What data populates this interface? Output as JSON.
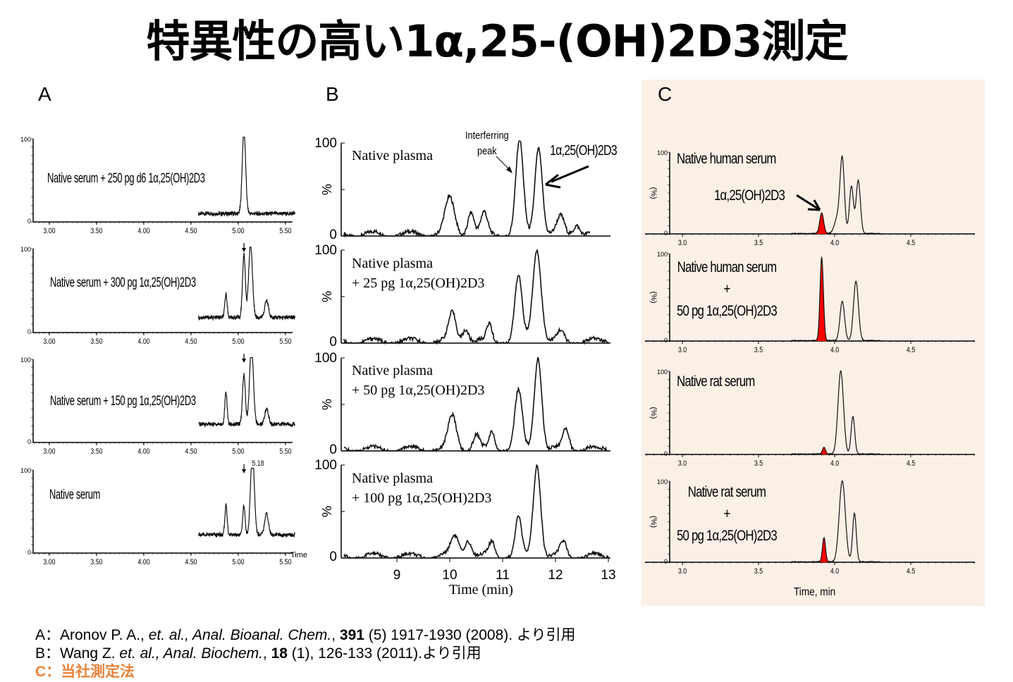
{
  "title": "特異性の高い1α,25-(OH)2D3測定",
  "panels": {
    "A": {
      "label": "A"
    },
    "B": {
      "label": "B",
      "interfering": "Interferring",
      "interfering2": "peak",
      "analyte": "1α,25(OH)2D3",
      "xlabel": "Time (min)",
      "ylabel": "%"
    },
    "C": {
      "label": "C",
      "analyte": "1α,25(OH)2D3",
      "xlabel": "Time, min",
      "ylabel": "(%)"
    }
  },
  "traces": {
    "A": [
      "Native serum + 250 pg d6 1α,25(OH)2D3",
      "Native serum + 300 pg 1α,25(OH)2D3",
      "Native serum + 150 pg 1α,25(OH)2D3",
      "Native serum"
    ],
    "A_peak_label": "5.18",
    "A_time_label": "Time",
    "B": [
      [
        "Native plasma",
        ""
      ],
      [
        "Native plasma",
        "+ 25 pg 1α,25(OH)2D3"
      ],
      [
        "Native plasma",
        "+ 50 pg 1α,25(OH)2D3"
      ],
      [
        "Native plasma",
        "+ 100 pg 1α,25(OH)2D3"
      ]
    ],
    "C": [
      [
        "Native human serum"
      ],
      [
        "Native human serum",
        "+",
        "50 pg 1α,25(OH)2D3"
      ],
      [
        "Native rat serum"
      ],
      [
        "Native rat serum",
        "+",
        "50 pg 1α,25(OH)2D3"
      ]
    ]
  },
  "chart_data": [
    {
      "type": "line",
      "panel": "A",
      "xlim": [
        2.85,
        5.6
      ],
      "ylim": [
        0,
        100
      ],
      "xticks": [
        "3.00",
        "3.50",
        "4.00",
        "4.50",
        "5.00",
        "5.50"
      ],
      "yticks": [
        "0",
        "100"
      ],
      "series": [
        {
          "name": "Native serum + 250 pg d6",
          "start": 4.58,
          "baseline": 10,
          "peaks": [
            [
              5.06,
              100,
              0.018
            ]
          ]
        },
        {
          "name": "Native serum + 300 pg",
          "start": 4.58,
          "baseline": 18,
          "peaks": [
            [
              4.87,
              28,
              0.012
            ],
            [
              5.06,
              75,
              0.015
            ],
            [
              5.13,
              88,
              0.02
            ],
            [
              5.3,
              20,
              0.02
            ]
          ]
        },
        {
          "name": "Native serum + 150 pg",
          "start": 4.58,
          "baseline": 22,
          "peaks": [
            [
              4.87,
              38,
              0.012
            ],
            [
              5.06,
              60,
              0.015
            ],
            [
              5.14,
              95,
              0.02
            ],
            [
              5.3,
              18,
              0.02
            ]
          ]
        },
        {
          "name": "Native serum",
          "start": 4.58,
          "baseline": 22,
          "peaks": [
            [
              4.87,
              35,
              0.012
            ],
            [
              5.06,
              35,
              0.012
            ],
            [
              5.15,
              100,
              0.02
            ],
            [
              5.3,
              25,
              0.02
            ]
          ]
        }
      ]
    },
    {
      "type": "line",
      "panel": "B",
      "xlim": [
        8,
        13
      ],
      "ylim": [
        0,
        100
      ],
      "xticks": [
        "9",
        "10",
        "11",
        "12",
        "13"
      ],
      "yticks": [
        "0",
        "%",
        "100"
      ],
      "series": [
        {
          "name": "Native plasma",
          "start": 8,
          "end": 12.65,
          "baseline": 2,
          "peaks": [
            [
              10,
              38,
              0.09
            ],
            [
              10.4,
              25,
              0.06
            ],
            [
              10.65,
              22,
              0.06
            ],
            [
              11.32,
              100,
              0.07
            ],
            [
              11.68,
              95,
              0.07
            ],
            [
              12.1,
              18,
              0.07
            ],
            [
              12.4,
              12,
              0.06
            ]
          ]
        },
        {
          "name": "+25 pg",
          "start": 8,
          "end": 13,
          "baseline": 2,
          "peaks": [
            [
              10.05,
              30,
              0.07
            ],
            [
              10.3,
              15,
              0.06
            ],
            [
              10.75,
              18,
              0.05
            ],
            [
              11.3,
              68,
              0.07
            ],
            [
              11.65,
              100,
              0.08
            ],
            [
              12.1,
              10,
              0.06
            ]
          ]
        },
        {
          "name": "+50 pg",
          "start": 8,
          "end": 13,
          "baseline": 2,
          "peaks": [
            [
              10.05,
              35,
              0.08
            ],
            [
              10.5,
              15,
              0.06
            ],
            [
              10.8,
              18,
              0.05
            ],
            [
              11.3,
              62,
              0.07
            ],
            [
              11.67,
              100,
              0.07
            ],
            [
              12.2,
              22,
              0.06
            ]
          ]
        },
        {
          "name": "+100 pg",
          "start": 8,
          "end": 13,
          "baseline": 2,
          "peaks": [
            [
              10.1,
              22,
              0.08
            ],
            [
              10.35,
              18,
              0.06
            ],
            [
              10.8,
              15,
              0.06
            ],
            [
              11.3,
              40,
              0.06
            ],
            [
              11.65,
              100,
              0.07
            ],
            [
              12.15,
              15,
              0.06
            ]
          ]
        }
      ]
    },
    {
      "type": "line",
      "panel": "C",
      "xlim": [
        2.9,
        4.9
      ],
      "ylim": [
        0,
        100
      ],
      "xticks": [
        "3.0",
        "3.5",
        "4.0",
        "4.5"
      ],
      "yticks": [
        "0",
        "100"
      ],
      "series": [
        {
          "name": "Native human serum",
          "start": 3.72,
          "end": 4.3,
          "analyte_peak": [
            3.915,
            25,
            0.013
          ],
          "peaks": [
            [
              4.02,
              20,
              0.02
            ],
            [
              4.05,
              88,
              0.014
            ],
            [
              4.11,
              58,
              0.013
            ],
            [
              4.155,
              65,
              0.014
            ]
          ]
        },
        {
          "name": "Native human serum + 50 pg",
          "start": 3.72,
          "end": 4.3,
          "analyte_peak": [
            3.915,
            95,
            0.011
          ],
          "peaks": [
            [
              4.05,
              45,
              0.015
            ],
            [
              4.14,
              68,
              0.016
            ]
          ]
        },
        {
          "name": "Native rat serum",
          "start": 3.72,
          "end": 4.3,
          "analyte_peak": [
            3.93,
            8,
            0.01
          ],
          "peaks": [
            [
              4.04,
              100,
              0.018
            ],
            [
              4.12,
              45,
              0.012
            ]
          ]
        },
        {
          "name": "Native rat serum + 50 pg",
          "start": 3.72,
          "end": 4.3,
          "analyte_peak": [
            3.93,
            30,
            0.01
          ],
          "peaks": [
            [
              4.05,
              100,
              0.02
            ],
            [
              4.13,
              60,
              0.012
            ]
          ]
        }
      ]
    }
  ],
  "references": {
    "a_prefix": "A：Aronov P. A., ",
    "a_italic": "et. al., Anal. Bioanal. Chem.",
    "a_mid": ", ",
    "a_bold": "391",
    "a_rest": " (5) 1917-1930 (2008). より引用",
    "b_prefix": "B：Wang Z. ",
    "b_italic": "et. al., Anal. Biochem.",
    "b_mid": ", ",
    "b_bold": "18",
    "b_rest": " (1), 126-133 (2011).より引用",
    "c": "C：当社測定法"
  },
  "colors": {
    "analyte_fill": "#ff0000",
    "panel_c_bg": "#fbf0e6",
    "highlight": "#e8823a"
  }
}
